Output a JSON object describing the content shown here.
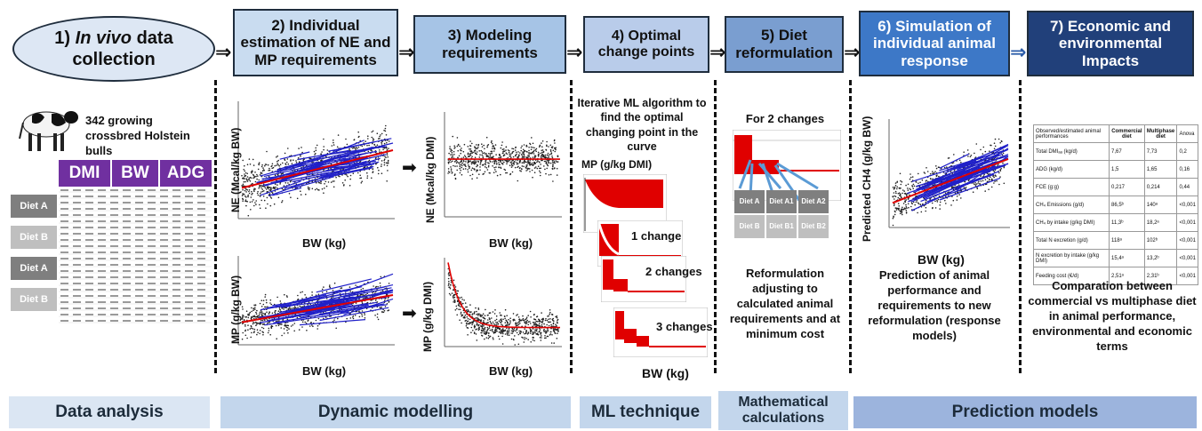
{
  "colors": {
    "step1_bg": "#dde7f4",
    "step2_bg": "#c9dcf0",
    "step3_bg": "#a6c4e6",
    "step4_bg": "#b9ccea",
    "step5_bg": "#7a9ed0",
    "step6_bg": "#3d78c7",
    "step7_bg": "#21407a",
    "purple": "#7030a0",
    "red_curve": "#e00000",
    "blue_lines": "#2020c8",
    "diet_dark": "#7f7f7f",
    "diet_light": "#bfbfbf",
    "bottom_light": "#dbe6f3",
    "bottom_mid": "#c3d6ec",
    "bottom_dark": "#9cb4dd"
  },
  "steps": {
    "s1_num": "1)",
    "s1_italic": "In vivo",
    "s1_rest": " data collection",
    "s2": "2) Individual estimation of NE and MP requirements",
    "s3": "3) Modeling requirements",
    "s4": "4) Optimal change points",
    "s5": "5) Diet reformulation",
    "s6": "6) Simulation of individual animal response",
    "s7": "7) Economic and environmental Impacts"
  },
  "data_collection": {
    "bulls": "342 growing crossbred Holstein bulls",
    "headers": [
      "DMI",
      "BW",
      "ADG"
    ],
    "diets": [
      "Diet A",
      "Diet B",
      "Diet A",
      "Diet B"
    ]
  },
  "plots": {
    "ne_ylabel": "NE (Mcal/kg BW)",
    "mp_ylabel": "MP (g/kg BW)",
    "ne_dmi_ylabel": "NE (Mcal/kg DMI)",
    "mp_dmi_ylabel": "MP (g/kg DMI)",
    "bw_label": "BW (kg)",
    "ch4_ylabel": "Predicted CH4 (g/kg BW)"
  },
  "ml": {
    "desc": "Iterative ML algorithm to find the optimal changing point in the curve",
    "ylabel": "MP (g/kg DMI)",
    "change1": "1 change",
    "change2": "2 changes",
    "change3": "3 changes",
    "xlabel": "BW (kg)"
  },
  "reform": {
    "title": "For 2 changes",
    "diets_dark": [
      "Diet A",
      "Diet A1",
      "Diet A2"
    ],
    "diets_light": [
      "Diet B",
      "Diet B1",
      "Diet B2"
    ],
    "desc": "Reformulation adjusting to calculated animal requirements and at minimum cost"
  },
  "simulation": {
    "desc": "Prediction of animal performance and requirements to new reformulation (response models)"
  },
  "impacts": {
    "header": [
      "Observed/estimated animal performances",
      "Commercial diet",
      "Multiphase diet",
      "Anova"
    ],
    "rows": [
      [
        "Total DMIₐₐ (kg/d)",
        "7,67",
        "7,73",
        "0,2"
      ],
      [
        "ADG (kg/d)",
        "1,5",
        "1,65",
        "0,16"
      ],
      [
        "FCE (g:g)",
        "0,217",
        "0,214",
        "0,44"
      ],
      [
        "CH₄ Emissions (g/d)",
        "86,5ᵇ",
        "140ᵃ",
        "<0,001"
      ],
      [
        "CH₄ by intake (g/kg DMI)",
        "11,3ᵇ",
        "18,2ᵃ",
        "<0,001"
      ],
      [
        "Total N excretion (g/d)",
        "118ᵃ",
        "102ᵇ",
        "<0,001"
      ],
      [
        "N excretion by intake (g/kg DMI)",
        "15,4ᵃ",
        "13,2ᵇ",
        "<0,001"
      ],
      [
        "Feeding cost (€/d)",
        "2,51ᵃ",
        "2,31ᵇ",
        "<0,001"
      ]
    ],
    "desc": "Comparation between commercial vs multiphase diet in animal performance, environmental and economic terms"
  },
  "bottom": {
    "data_analysis": "Data analysis",
    "dynamic": "Dynamic modelling",
    "ml_technique": "ML technique",
    "math": "Mathematical calculations",
    "prediction": "Prediction models"
  }
}
